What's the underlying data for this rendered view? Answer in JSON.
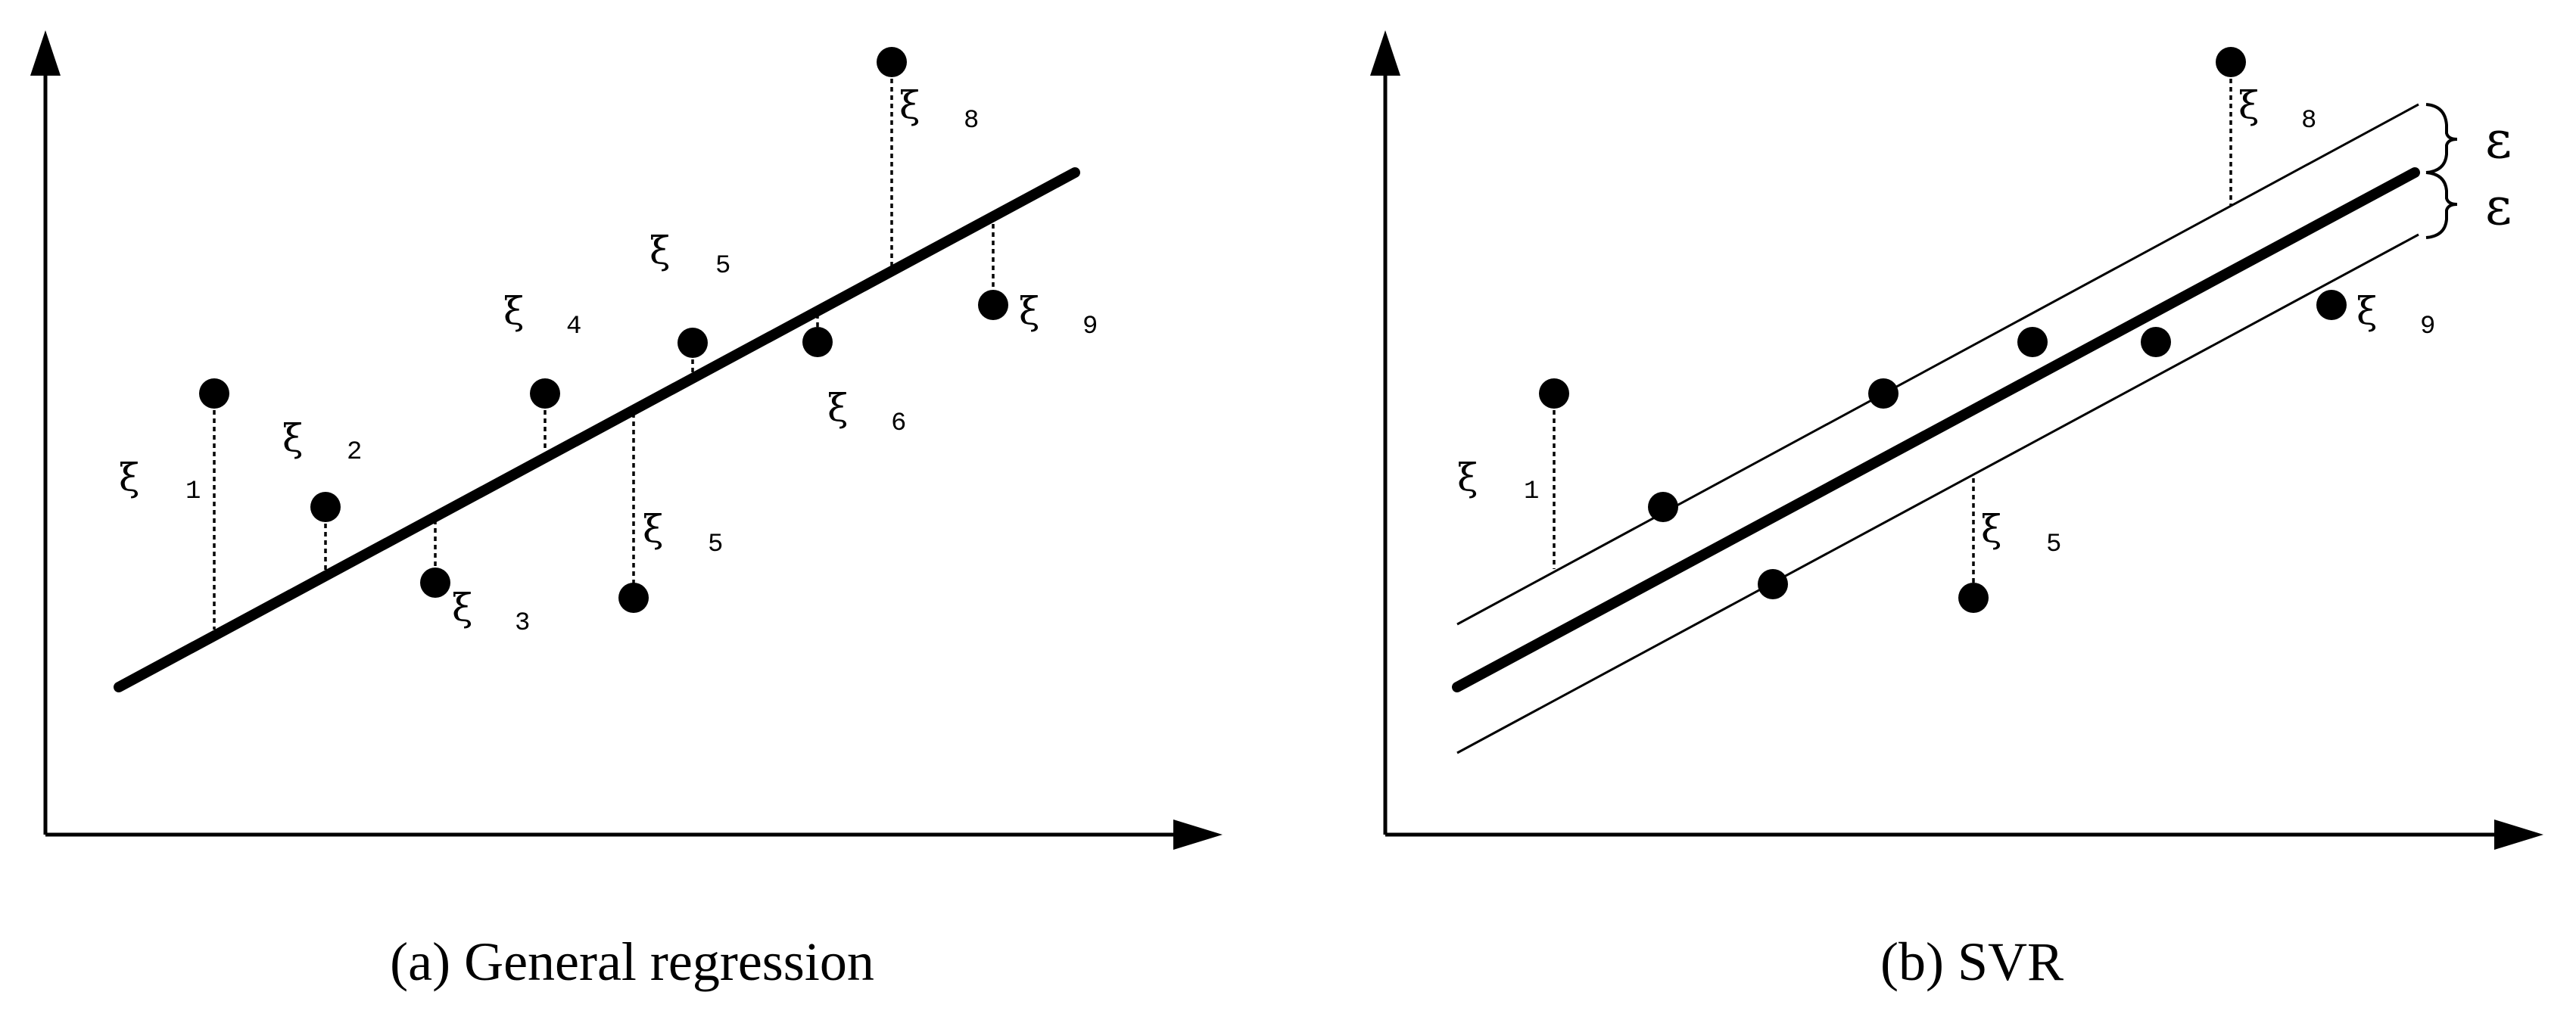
{
  "panel_a": {
    "caption": "(a) General regression",
    "labels": [
      {
        "sym": "ξ",
        "sub": "1"
      },
      {
        "sym": "ξ",
        "sub": "2"
      },
      {
        "sym": "ξ",
        "sub": "3"
      },
      {
        "sym": "ξ",
        "sub": "4"
      },
      {
        "sym": "ξ",
        "sub": "5"
      },
      {
        "sym": "ξ",
        "sub": "5"
      },
      {
        "sym": "ξ",
        "sub": "6"
      },
      {
        "sym": "ξ",
        "sub": "8"
      },
      {
        "sym": "ξ",
        "sub": "9"
      }
    ]
  },
  "panel_b": {
    "caption": "(b) SVR",
    "labels": [
      {
        "sym": "ξ",
        "sub": "1"
      },
      {
        "sym": "ξ",
        "sub": "5"
      },
      {
        "sym": "ξ",
        "sub": "8"
      },
      {
        "sym": "ξ",
        "sub": "9"
      }
    ],
    "epsilon_upper": "ε",
    "epsilon_lower": "ε"
  }
}
